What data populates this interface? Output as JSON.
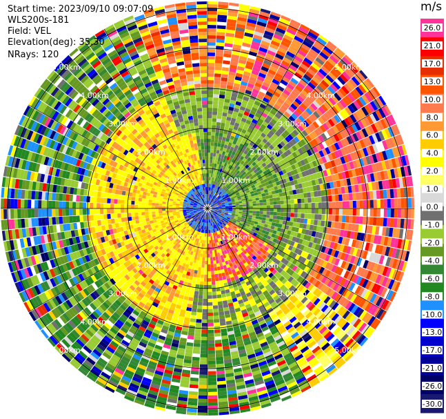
{
  "header": {
    "start_time": "Start time: 2023/09/10 09:07:09",
    "instrument": "WLS200s-181",
    "field": "Field: VEL",
    "elevation": "Elevation(deg): 35.30",
    "nrays": "NRays: 120"
  },
  "range_rings": {
    "labels": [
      "1.00km",
      "2.00km",
      "3.00km",
      "4.00km",
      "5.00km"
    ]
  },
  "colorbar": {
    "title": "m/s",
    "ticks": [
      "26.0",
      "21.0",
      "17.0",
      "13.0",
      "10.0",
      "8.0",
      "6.0",
      "4.0",
      "2.0",
      "1.0",
      "0.0",
      "-1.0",
      "-2.0",
      "-4.0",
      "-6.0",
      "-8.0",
      "-10.0",
      "-13.0",
      "-17.0",
      "-21.0",
      "-26.0",
      "-30.0"
    ],
    "colors": [
      "#ff3399",
      "#ff0000",
      "#e62e00",
      "#ff5500",
      "#ff7a4d",
      "#ff9933",
      "#ffcc00",
      "#ffff00",
      "#ffff66",
      "#d9d9d9",
      "#707070",
      "#99cc33",
      "#669922",
      "#338833",
      "#228822",
      "#1e90ff",
      "#0000ff",
      "#0000cc",
      "#000099",
      "#000066",
      "#191970"
    ]
  }
}
